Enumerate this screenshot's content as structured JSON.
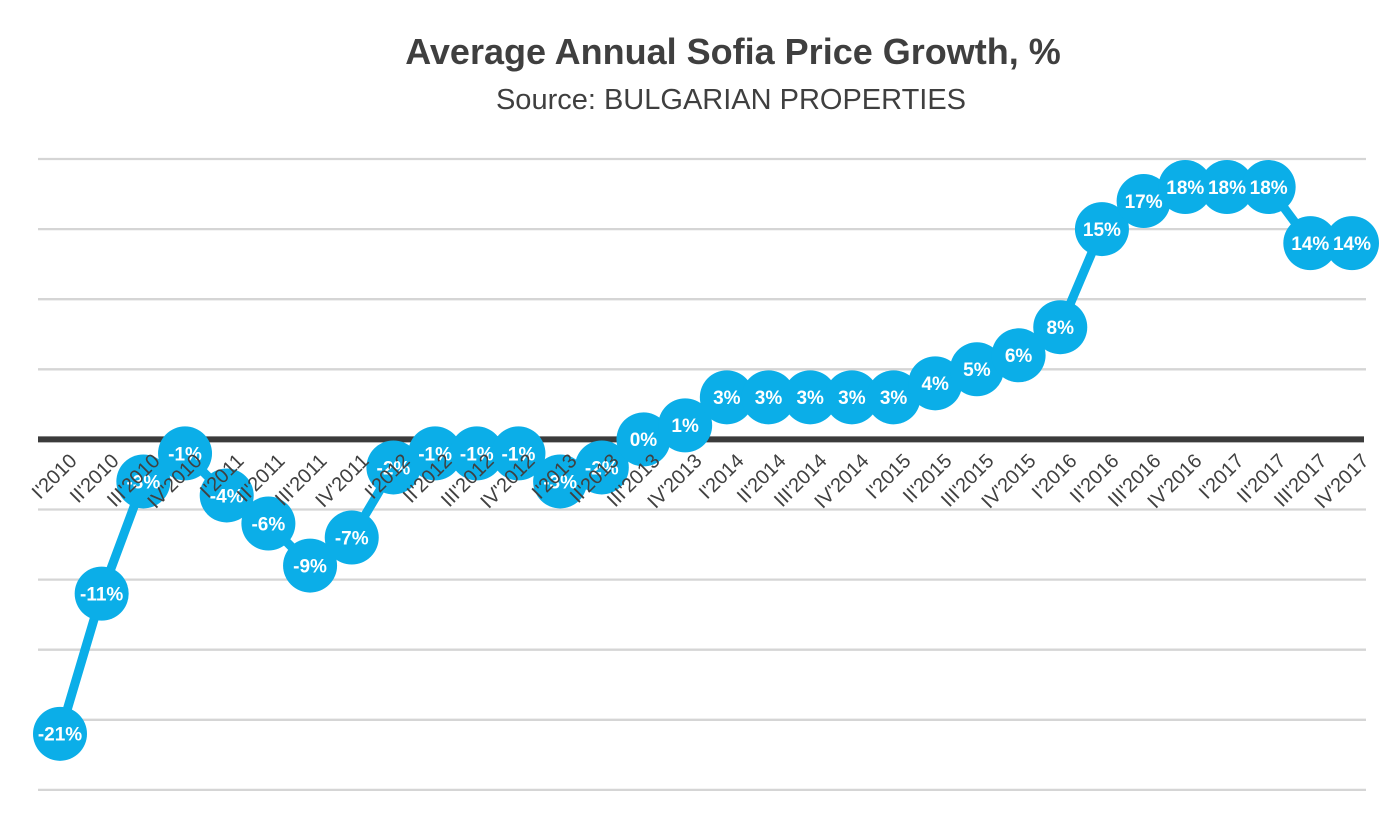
{
  "title": "Average Annual Sofia Price Growth, %",
  "subtitle": "Source: BULGARIAN PROPERTIES",
  "colors": {
    "series": "#0BAEE8",
    "gridline": "#D5D5D5",
    "zero_axis": "#3B3B3B",
    "axis_label_text": "#404040",
    "title_text": "#3F3F3F",
    "point_label_text": "#FFFFFF"
  },
  "chart_data": {
    "type": "line",
    "title": "Average Annual Sofia Price Growth, %",
    "subtitle": "Source: BULGARIAN PROPERTIES",
    "series_name": "Average Annual Sofia Price Growth %",
    "categories": [
      "I'2010",
      "II'2010",
      "III'2010",
      "IV'2010",
      "I'2011",
      "II'2011",
      "III'2011",
      "IV'2011",
      "I'2012",
      "II'2012",
      "III'2012",
      "IV'2012",
      "I'2013",
      "II'2013",
      "III'2013",
      "IV'2013",
      "I'2014",
      "II'2014",
      "III'2014",
      "IV'2014",
      "I'2015",
      "II'2015",
      "III'2015",
      "IV'2015",
      "I'2016",
      "II'2016",
      "III'2016",
      "IV'2016",
      "I'2017",
      "II'2017",
      "III'2017",
      "IV'2017"
    ],
    "values": [
      -21,
      -11,
      -3,
      -1,
      -4,
      -6,
      -9,
      -7,
      -2,
      -1,
      -1,
      -1,
      -3,
      -2,
      0,
      1,
      3,
      3,
      3,
      3,
      3,
      4,
      5,
      6,
      8,
      15,
      17,
      18,
      18,
      18,
      14,
      14
    ],
    "data_label_suffix": "%",
    "ylim": [
      -25,
      20
    ],
    "gridline_step": 5,
    "grid": true,
    "legend": false,
    "y_axis_labels_visible": false,
    "marker": "filled-circle-with-label",
    "xlabel": "",
    "ylabel": ""
  }
}
